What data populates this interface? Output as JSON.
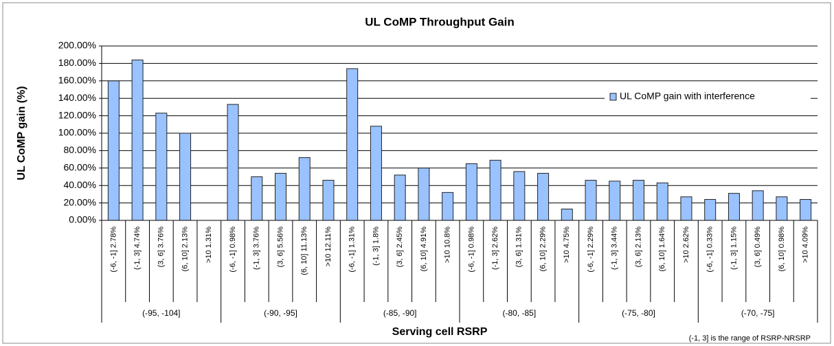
{
  "chart_data": {
    "type": "bar",
    "title": "UL CoMP Throughput Gain",
    "y_label": "UL CoMP gain (%)",
    "x_label": "Serving cell RSRP",
    "note": "(-1, 3] is the range of RSRP-NRSRP",
    "categories": [
      "(-6, -1] 2.78%",
      "(-1, 3] 4.74%",
      "(3, 6] 3.76%",
      "(6, 10] 2.13%",
      ">10 1.31%",
      "(-6, -1] 0.98%",
      "(-1, 3] 3.76%",
      "(3, 6] 5.56%",
      "(6, 10] 11.13%",
      ">10 12.11%",
      "(-6, -1] 1.31%",
      "(-1, 3] 1.8%",
      "(3, 6] 2.45%",
      "(6, 10] 4.91%",
      ">10 10.8%",
      "(-6, -1] 0.98%",
      "(-1, 3] 2.62%",
      "(3, 6] 1.31%",
      "(6, 10] 2.29%",
      ">10 4.75%",
      "(-6, -1] 2.29%",
      "(-1, 3] 3.44%",
      "(3, 6] 2.13%",
      "(6, 10] 1.64%",
      ">10 2.62%",
      "(-6, -1] 0.33%",
      "(-1, 3] 1.15%",
      "(3, 6] 0.49%",
      "(6, 10] 0.98%",
      ">10 4.09%"
    ],
    "group_labels": [
      "(-95, -104]",
      "(-90, -95]",
      "(-85, -90]",
      "(-80, -85]",
      "(-75, -80]",
      "(-70, -75]"
    ],
    "series": [
      {
        "name": "UL CoMP gain with interference",
        "color": "#99c2ff",
        "values": [
          160,
          184,
          123,
          100,
          0,
          133,
          50,
          54,
          72,
          46,
          174,
          108,
          52,
          60,
          32,
          65,
          69,
          56,
          54,
          13,
          46,
          45,
          46,
          43,
          27,
          24,
          31,
          34,
          27,
          24
        ]
      }
    ],
    "ylim": [
      0,
      200
    ],
    "yticks": [
      {
        "value": 0,
        "label": "0.00%"
      },
      {
        "value": 20,
        "label": "20.00%"
      },
      {
        "value": 40,
        "label": "40.00%"
      },
      {
        "value": 60,
        "label": "60.00%"
      },
      {
        "value": 80,
        "label": "80.00%"
      },
      {
        "value": 100,
        "label": "100.00%"
      },
      {
        "value": 120,
        "label": "120.00%"
      },
      {
        "value": 140,
        "label": "140.00%"
      },
      {
        "value": 160,
        "label": "160.00%"
      },
      {
        "value": 180,
        "label": "180.00%"
      },
      {
        "value": 200,
        "label": "200.00%"
      }
    ],
    "grid": true,
    "legend": "upper right"
  }
}
